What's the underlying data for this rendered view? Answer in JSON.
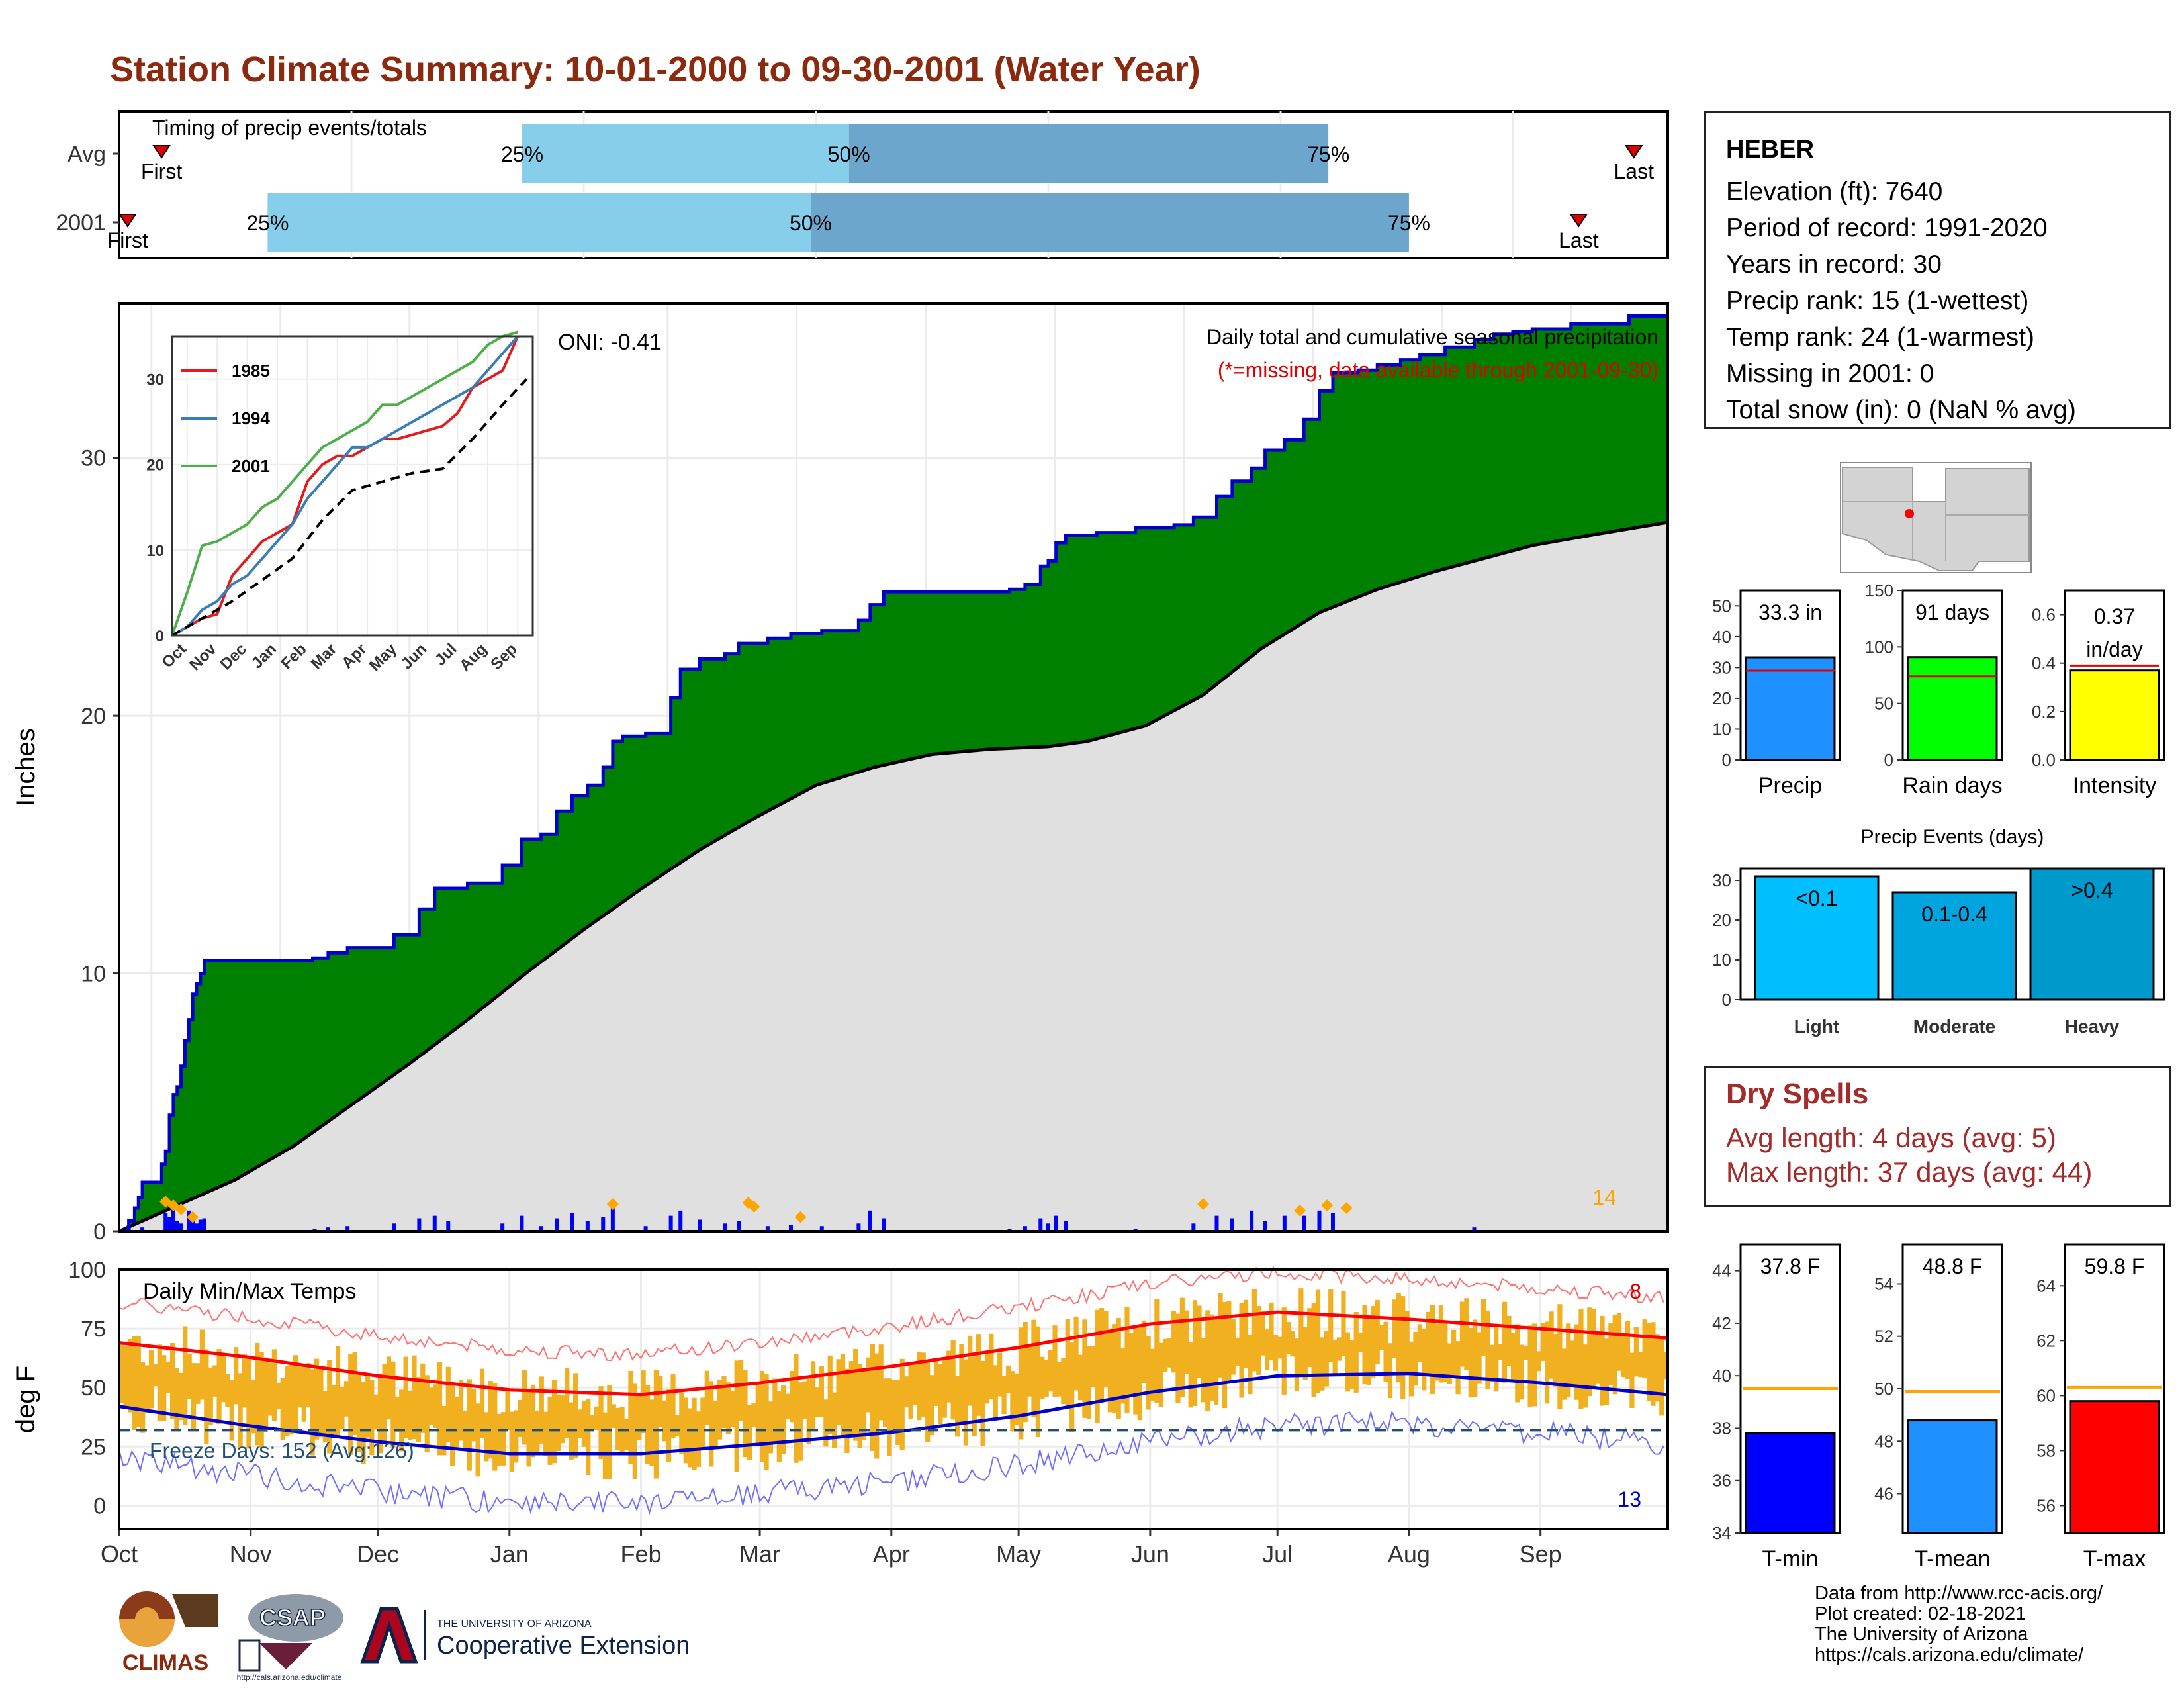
{
  "title": "Station Climate Summary: 10-01-2000 to 09-30-2001 (Water Year)",
  "timing": {
    "title": "Timing of precip events/totals",
    "rows": [
      {
        "label": "Avg",
        "first_doy": 10,
        "q25_doy": 95,
        "q50_doy": 172,
        "q75_doy": 285,
        "last_doy": 357,
        "first_label": "First",
        "last_label": "Last"
      },
      {
        "label": "2001",
        "first_doy": 2,
        "q25_doy": 35,
        "q50_doy": 163,
        "q75_doy": 304,
        "last_doy": 344,
        "first_label": "First",
        "last_label": "Last"
      }
    ],
    "pct_labels": [
      "25%",
      "50%",
      "75%"
    ],
    "colors": {
      "q25_50": "#87ceeb",
      "q50_75": "#6ca6cd",
      "marker": "#e00000"
    }
  },
  "precip": {
    "ylabel": "Inches",
    "yticks": [
      0,
      10,
      20,
      30
    ],
    "ylim": [
      0,
      36
    ],
    "oni_label": "ONI: -0.41",
    "caption": "Daily total and cumulative seasonal precipitation",
    "missing_note": "(*=missing, data available through 2001-09-30)",
    "extreme_count_label": "14",
    "cum_2001": [
      [
        0,
        0
      ],
      [
        5,
        0.4
      ],
      [
        8,
        0.9
      ],
      [
        10,
        1.3
      ],
      [
        12,
        1.9
      ],
      [
        20,
        1.9
      ],
      [
        22,
        2.6
      ],
      [
        24,
        3.1
      ],
      [
        26,
        4.5
      ],
      [
        28,
        5.3
      ],
      [
        30,
        5.6
      ],
      [
        32,
        6.4
      ],
      [
        34,
        7.4
      ],
      [
        36,
        8.2
      ],
      [
        38,
        9.2
      ],
      [
        40,
        9.6
      ],
      [
        42,
        10.0
      ],
      [
        44,
        10.5
      ],
      [
        60,
        10.5
      ],
      [
        80,
        10.5
      ],
      [
        100,
        10.6
      ],
      [
        108,
        10.8
      ],
      [
        118,
        11.0
      ],
      [
        142,
        11.5
      ],
      [
        155,
        12.5
      ],
      [
        163,
        13.3
      ],
      [
        180,
        13.5
      ],
      [
        198,
        14.2
      ],
      [
        208,
        15.2
      ],
      [
        218,
        15.4
      ],
      [
        226,
        16.3
      ],
      [
        234,
        16.9
      ],
      [
        242,
        17.3
      ],
      [
        250,
        18.0
      ],
      [
        255,
        19.0
      ],
      [
        260,
        19.2
      ],
      [
        272,
        19.3
      ],
      [
        285,
        20.7
      ],
      [
        290,
        21.8
      ],
      [
        300,
        22.2
      ],
      [
        313,
        22.4
      ],
      [
        320,
        22.8
      ],
      [
        335,
        23.0
      ],
      [
        347,
        23.2
      ],
      [
        363,
        23.3
      ],
      [
        382,
        23.7
      ],
      [
        388,
        24.3
      ],
      [
        395,
        24.8
      ],
      [
        430,
        24.8
      ],
      [
        450,
        24.8
      ],
      [
        460,
        24.9
      ],
      [
        468,
        25.1
      ],
      [
        476,
        25.8
      ],
      [
        480,
        26.0
      ],
      [
        484,
        26.7
      ],
      [
        489,
        27.0
      ],
      [
        505,
        27.1
      ],
      [
        525,
        27.3
      ],
      [
        545,
        27.4
      ],
      [
        555,
        27.7
      ],
      [
        567,
        28.5
      ],
      [
        575,
        29.1
      ],
      [
        585,
        29.6
      ],
      [
        592,
        30.3
      ],
      [
        602,
        30.7
      ],
      [
        612,
        31.5
      ],
      [
        620,
        32.6
      ],
      [
        627,
        33.3
      ],
      [
        640,
        33.4
      ],
      [
        650,
        33.6
      ],
      [
        662,
        33.8
      ],
      [
        672,
        34.0
      ],
      [
        685,
        34.3
      ],
      [
        700,
        34.6
      ],
      [
        710,
        34.8
      ],
      [
        720,
        34.9
      ],
      [
        730,
        35.0
      ],
      [
        750,
        35.2
      ],
      [
        780,
        35.5
      ],
      [
        800,
        35.5
      ]
    ],
    "cum_avg": [
      [
        0,
        0
      ],
      [
        30,
        1.0
      ],
      [
        60,
        2.0
      ],
      [
        90,
        3.3
      ],
      [
        120,
        4.9
      ],
      [
        150,
        6.5
      ],
      [
        180,
        8.2
      ],
      [
        210,
        10.0
      ],
      [
        240,
        11.7
      ],
      [
        270,
        13.3
      ],
      [
        300,
        14.8
      ],
      [
        330,
        16.1
      ],
      [
        360,
        17.3
      ],
      [
        390,
        18.0
      ],
      [
        420,
        18.5
      ],
      [
        450,
        18.7
      ],
      [
        480,
        18.8
      ],
      [
        500,
        19.0
      ],
      [
        530,
        19.6
      ],
      [
        560,
        20.8
      ],
      [
        590,
        22.6
      ],
      [
        620,
        24.0
      ],
      [
        650,
        24.9
      ],
      [
        680,
        25.6
      ],
      [
        710,
        26.2
      ],
      [
        730,
        26.6
      ],
      [
        760,
        27.0
      ],
      [
        800,
        27.5
      ]
    ],
    "daily_bars": [
      [
        5,
        0.25
      ],
      [
        12,
        0.15
      ],
      [
        24,
        0.7
      ],
      [
        26,
        0.55
      ],
      [
        28,
        0.9
      ],
      [
        30,
        0.4
      ],
      [
        32,
        0.3
      ],
      [
        36,
        0.8
      ],
      [
        38,
        0.5
      ],
      [
        40,
        0.3
      ],
      [
        42,
        0.45
      ],
      [
        44,
        0.5
      ],
      [
        101,
        0.1
      ],
      [
        108,
        0.15
      ],
      [
        118,
        0.2
      ],
      [
        142,
        0.3
      ],
      [
        155,
        0.5
      ],
      [
        163,
        0.6
      ],
      [
        170,
        0.4
      ],
      [
        198,
        0.3
      ],
      [
        208,
        0.6
      ],
      [
        218,
        0.2
      ],
      [
        226,
        0.5
      ],
      [
        234,
        0.7
      ],
      [
        242,
        0.4
      ],
      [
        250,
        0.55
      ],
      [
        255,
        0.9
      ],
      [
        272,
        0.2
      ],
      [
        285,
        0.6
      ],
      [
        290,
        0.8
      ],
      [
        300,
        0.45
      ],
      [
        313,
        0.3
      ],
      [
        320,
        0.4
      ],
      [
        335,
        0.2
      ],
      [
        347,
        0.25
      ],
      [
        363,
        0.2
      ],
      [
        382,
        0.3
      ],
      [
        388,
        0.8
      ],
      [
        395,
        0.5
      ],
      [
        460,
        0.1
      ],
      [
        468,
        0.2
      ],
      [
        476,
        0.5
      ],
      [
        480,
        0.3
      ],
      [
        484,
        0.6
      ],
      [
        489,
        0.4
      ],
      [
        525,
        0.1
      ],
      [
        555,
        0.3
      ],
      [
        567,
        0.6
      ],
      [
        575,
        0.5
      ],
      [
        585,
        0.8
      ],
      [
        592,
        0.4
      ],
      [
        602,
        0.6
      ],
      [
        612,
        0.6
      ],
      [
        620,
        0.8
      ],
      [
        627,
        0.7
      ],
      [
        700,
        0.15
      ]
    ],
    "extreme_marks": [
      [
        24,
        1.15
      ],
      [
        28,
        1.0
      ],
      [
        32,
        0.85
      ],
      [
        38,
        0.55
      ],
      [
        255,
        1.05
      ],
      [
        325,
        1.1
      ],
      [
        328,
        0.95
      ],
      [
        352,
        0.55
      ],
      [
        560,
        1.05
      ],
      [
        610,
        0.8
      ],
      [
        624,
        1.0
      ],
      [
        634,
        0.9
      ]
    ],
    "colors": {
      "cum_2001_line": "#0000cd",
      "fill_above": "#008000",
      "fill_below": "#e0e0e0",
      "bars": "#0000ff",
      "extreme": "#ffa500",
      "missing_note": "#e00000",
      "extreme_count": "#ffa500"
    }
  },
  "inset": {
    "xticks": [
      "Oct",
      "Nov",
      "Dec",
      "Jan",
      "Feb",
      "Mar",
      "Apr",
      "May",
      "Jun",
      "Jul",
      "Aug",
      "Sep"
    ],
    "yticks": [
      0,
      10,
      20,
      30
    ],
    "ylim": [
      0,
      35
    ],
    "series": [
      {
        "name": "1985",
        "color": "#e41a1c",
        "points": [
          [
            0,
            0
          ],
          [
            0.5,
            1
          ],
          [
            1,
            2
          ],
          [
            1.5,
            2.5
          ],
          [
            2,
            7
          ],
          [
            2.5,
            9
          ],
          [
            3,
            11
          ],
          [
            3.5,
            12
          ],
          [
            4,
            13
          ],
          [
            4.5,
            18
          ],
          [
            5,
            20
          ],
          [
            5.5,
            21
          ],
          [
            6,
            21
          ],
          [
            6.5,
            22
          ],
          [
            7,
            23
          ],
          [
            7.5,
            23
          ],
          [
            8,
            23.5
          ],
          [
            8.5,
            24
          ],
          [
            9,
            24.5
          ],
          [
            9.5,
            26
          ],
          [
            10,
            29
          ],
          [
            10.5,
            30
          ],
          [
            11,
            31
          ],
          [
            11.5,
            35
          ]
        ]
      },
      {
        "name": "1994",
        "color": "#377eb8",
        "points": [
          [
            0,
            0
          ],
          [
            0.5,
            1
          ],
          [
            1,
            3
          ],
          [
            1.5,
            4
          ],
          [
            2,
            6
          ],
          [
            2.5,
            7
          ],
          [
            3,
            9
          ],
          [
            3.5,
            11
          ],
          [
            4,
            13
          ],
          [
            4.5,
            16
          ],
          [
            5,
            18
          ],
          [
            5.5,
            20
          ],
          [
            6,
            22
          ],
          [
            6.5,
            22
          ],
          [
            7,
            23
          ],
          [
            7.5,
            24
          ],
          [
            8,
            25
          ],
          [
            8.5,
            26
          ],
          [
            9,
            27
          ],
          [
            9.5,
            28
          ],
          [
            10,
            29
          ],
          [
            10.5,
            31
          ],
          [
            11,
            33
          ],
          [
            11.5,
            35
          ]
        ]
      },
      {
        "name": "2001",
        "color": "#4daf4a",
        "points": [
          [
            0,
            0
          ],
          [
            0.5,
            5
          ],
          [
            1,
            10.5
          ],
          [
            1.5,
            11
          ],
          [
            2,
            12
          ],
          [
            2.5,
            13
          ],
          [
            3,
            15
          ],
          [
            3.5,
            16
          ],
          [
            4,
            18
          ],
          [
            4.5,
            20
          ],
          [
            5,
            22
          ],
          [
            5.5,
            23
          ],
          [
            6,
            24
          ],
          [
            6.5,
            25
          ],
          [
            7,
            27
          ],
          [
            7.5,
            27
          ],
          [
            8,
            28
          ],
          [
            8.5,
            29
          ],
          [
            9,
            30
          ],
          [
            9.5,
            31
          ],
          [
            10,
            32
          ],
          [
            10.5,
            34
          ],
          [
            11,
            35
          ],
          [
            11.5,
            35.5
          ]
        ]
      },
      {
        "points": [
          [
            0,
            0
          ],
          [
            1,
            2
          ],
          [
            2,
            4
          ],
          [
            3,
            6.5
          ],
          [
            4,
            9
          ],
          [
            5,
            13.5
          ],
          [
            6,
            17
          ],
          [
            7,
            18
          ],
          [
            8,
            19
          ],
          [
            9,
            19.5
          ],
          [
            10,
            23
          ],
          [
            11,
            27
          ],
          [
            11.8,
            30
          ]
        ],
        "color": "#000000",
        "dashed": true
      }
    ]
  },
  "temps": {
    "ylabel": "deg F",
    "yticks": [
      0,
      25,
      50,
      75,
      100
    ],
    "ylim": [
      -10,
      100
    ],
    "title": "Daily Min/Max Temps",
    "freeze_label": "Freeze Days: 152 (Avg:126)",
    "freeze_line": 32,
    "hot_count_label": "8",
    "cold_count_label": "13",
    "xticks": [
      "Oct",
      "Nov",
      "Dec",
      "Jan",
      "Feb",
      "Mar",
      "Apr",
      "May",
      "Jun",
      "Jul",
      "Aug",
      "Sep"
    ],
    "normal_max": [
      [
        0,
        69
      ],
      [
        30,
        63
      ],
      [
        61,
        55
      ],
      [
        92,
        49
      ],
      [
        123,
        47
      ],
      [
        151,
        52
      ],
      [
        182,
        59
      ],
      [
        212,
        67
      ],
      [
        243,
        77
      ],
      [
        273,
        82
      ],
      [
        304,
        79
      ],
      [
        335,
        75
      ],
      [
        365,
        71
      ]
    ],
    "normal_min": [
      [
        0,
        42
      ],
      [
        30,
        34
      ],
      [
        61,
        27
      ],
      [
        92,
        22
      ],
      [
        123,
        22
      ],
      [
        151,
        26
      ],
      [
        182,
        31
      ],
      [
        212,
        38
      ],
      [
        243,
        48
      ],
      [
        273,
        55
      ],
      [
        304,
        56
      ],
      [
        335,
        52
      ],
      [
        365,
        47
      ]
    ],
    "colors": {
      "bars": "#f0b020",
      "normal_max": "#ff0000",
      "normal_min": "#0000cd",
      "record_max": "#ff7070",
      "record_min": "#7070ff",
      "freeze": "#1f4e79",
      "hot": "#e00000",
      "cold": "#0000cd"
    }
  },
  "map": {
    "dot_color": "#ff0000"
  },
  "info": {
    "station": "HEBER",
    "lines": [
      "Elevation (ft): 7640",
      "Period of record: 1991-2020",
      "Years in record: 30",
      "Precip rank: 15 (1-wettest)",
      "Temp rank: 24 (1-warmest)",
      "Missing in 2001: 0",
      "Total snow (in): 0 (NaN % avg)"
    ]
  },
  "summary_bars": [
    {
      "label": "Precip",
      "value_label": "33.3 in",
      "value": 33.3,
      "avg": 29,
      "ylim": [
        0,
        55
      ],
      "yticks": [
        0,
        10,
        20,
        30,
        40,
        50
      ],
      "color": "#1e90ff"
    },
    {
      "label": "Rain days",
      "value_label": "91 days",
      "value": 91,
      "avg": 74,
      "ylim": [
        0,
        150
      ],
      "yticks": [
        0,
        50,
        100,
        150
      ],
      "color": "#00ff00"
    },
    {
      "label": "Intensity",
      "value_label1": "0.37",
      "value_label2": "in/day",
      "value": 0.37,
      "avg": 0.39,
      "ylim": [
        0,
        0.7
      ],
      "yticks": [
        "0.0",
        "0.2",
        "0.4",
        "0.6"
      ],
      "color": "#ffff00"
    }
  ],
  "precip_events": {
    "title": "Precip Events (days)",
    "categories": [
      "Light",
      "Moderate",
      "Heavy"
    ],
    "bar_labels": [
      "<0.1",
      "0.1-0.4",
      ">0.4"
    ],
    "values": [
      31,
      27,
      33
    ],
    "ylim": [
      0,
      33
    ],
    "yticks": [
      0,
      10,
      20,
      30
    ],
    "colors": [
      "#00bfff",
      "#00a5e0",
      "#0099cc"
    ]
  },
  "dry_spells": {
    "title": "Dry Spells",
    "avg_line": "Avg length: 4 days (avg: 5)",
    "max_line": "Max length: 37 days (avg: 44)"
  },
  "temp_bars": [
    {
      "label": "T-min",
      "value_label": "37.8 F",
      "value": 37.8,
      "avg": 39.5,
      "ylim": [
        34,
        45
      ],
      "yticks": [
        34,
        36,
        38,
        40,
        42,
        44
      ],
      "color": "#0000ff"
    },
    {
      "label": "T-mean",
      "value_label": "48.8 F",
      "value": 48.8,
      "avg": 49.9,
      "ylim": [
        44.5,
        55.5
      ],
      "yticks": [
        46,
        48,
        50,
        52,
        54
      ],
      "color": "#1e90ff"
    },
    {
      "label": "T-max",
      "value_label": "59.8 F",
      "value": 59.8,
      "avg": 60.3,
      "ylim": [
        55,
        65.5
      ],
      "yticks": [
        56,
        58,
        60,
        62,
        64
      ],
      "color": "#ff0000"
    }
  ],
  "credits": [
    "Data from http://www.rcc-acis.org/",
    "Plot created: 02-18-2021",
    "The University of Arizona",
    "https://cals.arizona.edu/climate/"
  ],
  "logos": {
    "climas": "CLIMAS",
    "csap": "CSAP",
    "csap_url": "http://cals.arizona.edu/climate",
    "ua_top": "THE UNIVERSITY OF ARIZONA",
    "ua_main": "Cooperative Extension"
  }
}
